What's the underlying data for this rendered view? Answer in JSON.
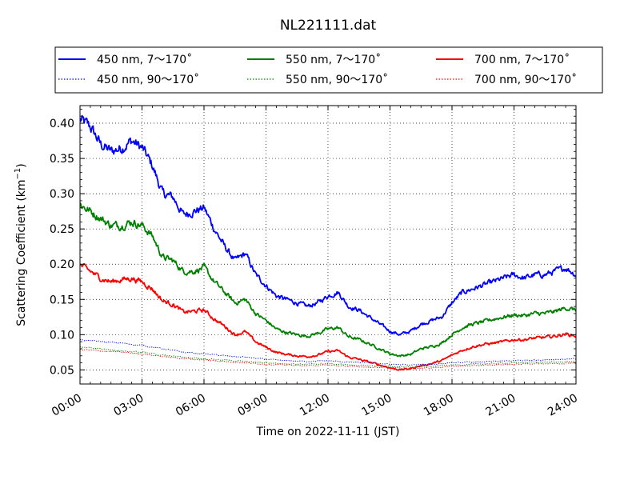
{
  "chart_data": {
    "type": "line",
    "title": "NL221111.dat",
    "xlabel": "Time on 2022-11-11 (JST)",
    "ylabel_main": "Scattering Coefficient (km",
    "ylabel_sup": "−1",
    "ylabel_end": ")",
    "xlim": [
      0,
      24
    ],
    "ylim": [
      0.03,
      0.425
    ],
    "x_ticks": [
      {
        "value": 0,
        "label": "00:00"
      },
      {
        "value": 3,
        "label": "03:00"
      },
      {
        "value": 6,
        "label": "06:00"
      },
      {
        "value": 9,
        "label": "09:00"
      },
      {
        "value": 12,
        "label": "12:00"
      },
      {
        "value": 15,
        "label": "15:00"
      },
      {
        "value": 18,
        "label": "18:00"
      },
      {
        "value": 21,
        "label": "21:00"
      },
      {
        "value": 24,
        "label": "24:00"
      }
    ],
    "y_ticks": [
      {
        "value": 0.05,
        "label": "0.05"
      },
      {
        "value": 0.1,
        "label": "0.10"
      },
      {
        "value": 0.15,
        "label": "0.15"
      },
      {
        "value": 0.2,
        "label": "0.20"
      },
      {
        "value": 0.25,
        "label": "0.25"
      },
      {
        "value": 0.3,
        "label": "0.30"
      },
      {
        "value": 0.35,
        "label": "0.35"
      },
      {
        "value": 0.4,
        "label": "0.40"
      }
    ],
    "grid": true,
    "legend_position": "top",
    "series": [
      {
        "name": "450 nm, 7～170˚",
        "color": "#0000ff",
        "style": "solid",
        "x": [
          0,
          0.5,
          1,
          1.5,
          2,
          2.5,
          3,
          3.5,
          4,
          4.5,
          5,
          5.5,
          6,
          6.5,
          7,
          7.5,
          8,
          8.5,
          9,
          9.5,
          10,
          10.5,
          11,
          11.5,
          12,
          12.5,
          13,
          13.5,
          14,
          14.5,
          15,
          15.5,
          16,
          16.5,
          17,
          17.5,
          18,
          18.5,
          19,
          19.5,
          20,
          20.5,
          21,
          21.5,
          22,
          22.5,
          23,
          23.5,
          24
        ],
        "y": [
          0.405,
          0.395,
          0.37,
          0.36,
          0.365,
          0.375,
          0.365,
          0.34,
          0.3,
          0.295,
          0.27,
          0.275,
          0.28,
          0.25,
          0.225,
          0.205,
          0.215,
          0.185,
          0.17,
          0.155,
          0.15,
          0.145,
          0.14,
          0.145,
          0.155,
          0.16,
          0.14,
          0.135,
          0.125,
          0.115,
          0.105,
          0.1,
          0.105,
          0.115,
          0.12,
          0.125,
          0.145,
          0.16,
          0.165,
          0.17,
          0.175,
          0.18,
          0.185,
          0.18,
          0.185,
          0.185,
          0.19,
          0.195,
          0.185
        ]
      },
      {
        "name": "550 nm, 7～170˚",
        "color": "#008000",
        "style": "solid",
        "x": [
          0,
          0.5,
          1,
          1.5,
          2,
          2.5,
          3,
          3.5,
          4,
          4.5,
          5,
          5.5,
          6,
          6.5,
          7,
          7.5,
          8,
          8.5,
          9,
          9.5,
          10,
          10.5,
          11,
          11.5,
          12,
          12.5,
          13,
          13.5,
          14,
          14.5,
          15,
          15.5,
          16,
          16.5,
          17,
          17.5,
          18,
          18.5,
          19,
          19.5,
          20,
          20.5,
          21,
          21.5,
          22,
          22.5,
          23,
          23.5,
          24
        ],
        "y": [
          0.285,
          0.275,
          0.265,
          0.255,
          0.255,
          0.26,
          0.255,
          0.24,
          0.21,
          0.205,
          0.19,
          0.19,
          0.195,
          0.175,
          0.16,
          0.145,
          0.15,
          0.13,
          0.12,
          0.108,
          0.103,
          0.1,
          0.098,
          0.102,
          0.108,
          0.11,
          0.097,
          0.093,
          0.087,
          0.08,
          0.073,
          0.07,
          0.072,
          0.08,
          0.083,
          0.088,
          0.1,
          0.11,
          0.115,
          0.118,
          0.122,
          0.125,
          0.128,
          0.127,
          0.13,
          0.13,
          0.133,
          0.138,
          0.135
        ]
      },
      {
        "name": "700 nm, 7～170˚",
        "color": "#ff0000",
        "style": "solid",
        "x": [
          0,
          0.5,
          1,
          1.5,
          2,
          2.5,
          3,
          3.5,
          4,
          4.5,
          5,
          5.5,
          6,
          6.5,
          7,
          7.5,
          8,
          8.5,
          9,
          9.5,
          10,
          10.5,
          11,
          11.5,
          12,
          12.5,
          13,
          13.5,
          14,
          14.5,
          15,
          15.5,
          16,
          16.5,
          17,
          17.5,
          18,
          18.5,
          19,
          19.5,
          20,
          20.5,
          21,
          21.5,
          22,
          22.5,
          23,
          23.5,
          24
        ],
        "y": [
          0.198,
          0.19,
          0.18,
          0.175,
          0.178,
          0.18,
          0.175,
          0.165,
          0.148,
          0.143,
          0.132,
          0.133,
          0.135,
          0.122,
          0.112,
          0.1,
          0.104,
          0.09,
          0.082,
          0.075,
          0.072,
          0.07,
          0.069,
          0.071,
          0.076,
          0.077,
          0.068,
          0.065,
          0.061,
          0.057,
          0.053,
          0.05,
          0.052,
          0.056,
          0.059,
          0.063,
          0.071,
          0.078,
          0.083,
          0.086,
          0.088,
          0.09,
          0.093,
          0.093,
          0.095,
          0.096,
          0.098,
          0.101,
          0.098
        ]
      },
      {
        "name": "450 nm, 90～170˚",
        "color": "#0000ff",
        "style": "dotted",
        "x": [
          0,
          1,
          2,
          3,
          4,
          5,
          6,
          7,
          8,
          9,
          10,
          11,
          12,
          13,
          14,
          15,
          16,
          17,
          18,
          19,
          20,
          21,
          22,
          23,
          24
        ],
        "y": [
          0.093,
          0.09,
          0.088,
          0.085,
          0.08,
          0.075,
          0.073,
          0.07,
          0.068,
          0.065,
          0.063,
          0.062,
          0.063,
          0.061,
          0.06,
          0.058,
          0.057,
          0.058,
          0.06,
          0.061,
          0.062,
          0.063,
          0.064,
          0.065,
          0.066
        ]
      },
      {
        "name": "550 nm, 90～170˚",
        "color": "#008000",
        "style": "dotted",
        "x": [
          0,
          1,
          2,
          3,
          4,
          5,
          6,
          7,
          8,
          9,
          10,
          11,
          12,
          13,
          14,
          15,
          16,
          17,
          18,
          19,
          20,
          21,
          22,
          23,
          24
        ],
        "y": [
          0.082,
          0.08,
          0.077,
          0.075,
          0.071,
          0.068,
          0.066,
          0.064,
          0.062,
          0.06,
          0.059,
          0.058,
          0.059,
          0.057,
          0.056,
          0.055,
          0.054,
          0.055,
          0.057,
          0.058,
          0.059,
          0.06,
          0.061,
          0.061,
          0.062
        ]
      },
      {
        "name": "700 nm, 90～170˚",
        "color": "#ff0000",
        "style": "dotted",
        "x": [
          0,
          1,
          2,
          3,
          4,
          5,
          6,
          7,
          8,
          9,
          10,
          11,
          12,
          13,
          14,
          15,
          16,
          17,
          18,
          19,
          20,
          21,
          22,
          23,
          24
        ],
        "y": [
          0.079,
          0.077,
          0.075,
          0.073,
          0.069,
          0.066,
          0.064,
          0.062,
          0.06,
          0.058,
          0.057,
          0.056,
          0.057,
          0.055,
          0.054,
          0.053,
          0.052,
          0.053,
          0.055,
          0.056,
          0.057,
          0.058,
          0.059,
          0.059,
          0.06
        ]
      }
    ]
  }
}
